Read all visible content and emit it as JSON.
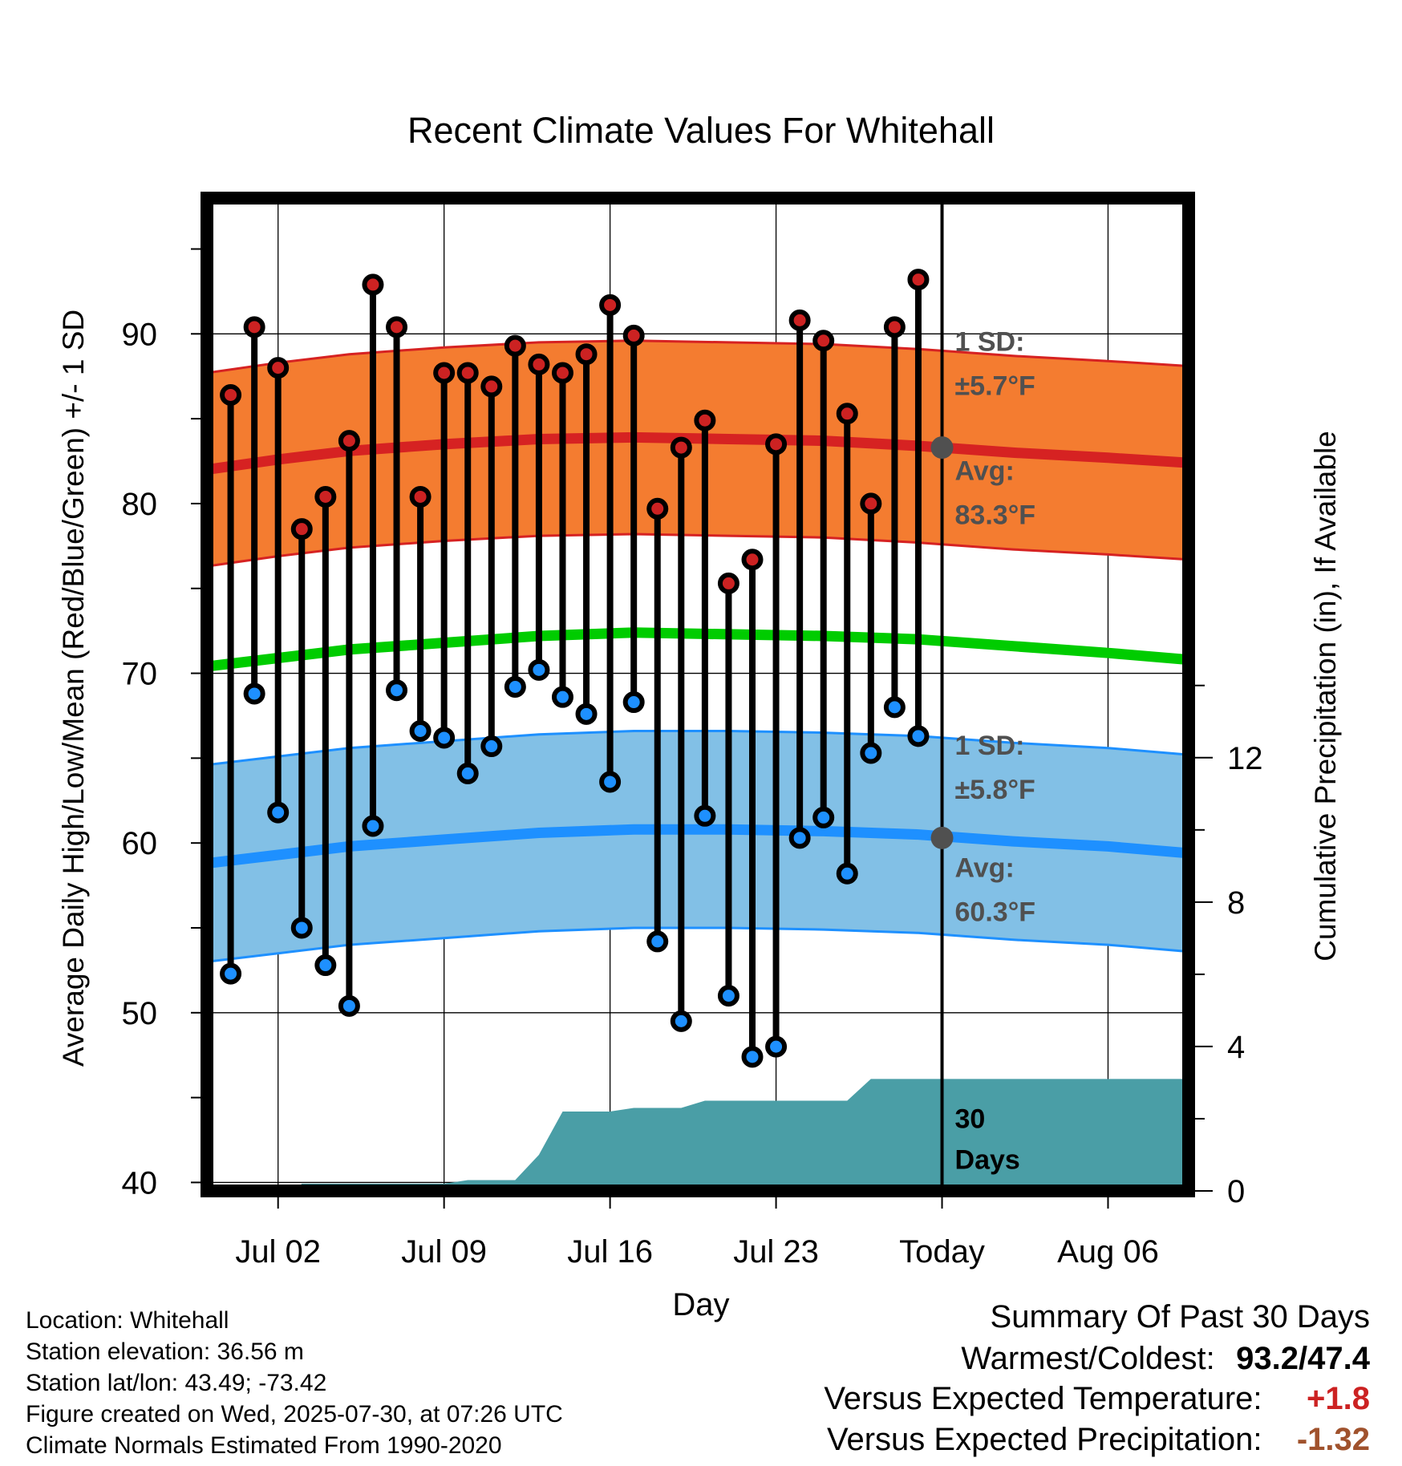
{
  "chart_data": {
    "type": "line",
    "title": "Recent Climate Values For Whitehall",
    "xlabel": "Day",
    "ylabel": "Average Daily High/Low/Mean (Red/Blue/Green) +/- 1 SD",
    "ylabel_right": "Cumulative Precipitation (in), If Available",
    "ylim": [
      39.5,
      98
    ],
    "ylim_right": [
      0,
      27.5
    ],
    "x_start": "Jun 29",
    "x_end": "Aug 09",
    "x_ticks": [
      {
        "day": 3,
        "label": "Jul 02"
      },
      {
        "day": 10,
        "label": "Jul 09"
      },
      {
        "day": 17,
        "label": "Jul 16"
      },
      {
        "day": 24,
        "label": "Jul 23"
      },
      {
        "day": 31,
        "label": "Today"
      },
      {
        "day": 38,
        "label": "Aug 06"
      }
    ],
    "y_ticks": [
      40,
      50,
      60,
      70,
      80,
      90
    ],
    "y_ticks_right": [
      0,
      4,
      8,
      12
    ],
    "today_day": 31,
    "normals": {
      "days": [
        0,
        3,
        6,
        10,
        14,
        18,
        22,
        26,
        30,
        34,
        38,
        41.4
      ],
      "high_mean": [
        82.0,
        82.6,
        83.1,
        83.5,
        83.8,
        83.9,
        83.8,
        83.7,
        83.4,
        83.0,
        82.7,
        82.4
      ],
      "high_sd": 5.7,
      "low_mean": [
        58.8,
        59.3,
        59.8,
        60.2,
        60.6,
        60.8,
        60.8,
        60.7,
        60.5,
        60.1,
        59.8,
        59.4
      ],
      "low_sd": 5.8,
      "mean": [
        70.4,
        70.9,
        71.4,
        71.8,
        72.2,
        72.4,
        72.3,
        72.2,
        72.0,
        71.6,
        71.2,
        70.8
      ]
    },
    "series": [
      {
        "name": "Daily High",
        "x": [
          1,
          2,
          3,
          4,
          5,
          6,
          7,
          8,
          9,
          10,
          11,
          12,
          13,
          14,
          15,
          16,
          17,
          18,
          19,
          20,
          21,
          22,
          23,
          24,
          25,
          26,
          27,
          28,
          29,
          30
        ],
        "values": [
          86.4,
          90.4,
          88.0,
          78.5,
          80.4,
          83.7,
          92.9,
          90.4,
          80.4,
          87.7,
          87.7,
          86.9,
          89.3,
          88.2,
          87.7,
          88.8,
          91.7,
          89.9,
          79.7,
          83.3,
          84.9,
          75.3,
          76.7,
          83.5,
          90.8,
          89.6,
          85.3,
          80.0,
          90.4,
          93.2
        ]
      },
      {
        "name": "Daily Low",
        "x": [
          1,
          2,
          3,
          4,
          5,
          6,
          7,
          8,
          9,
          10,
          11,
          12,
          13,
          14,
          15,
          16,
          17,
          18,
          19,
          20,
          21,
          22,
          23,
          24,
          25,
          26,
          27,
          28,
          29,
          30
        ],
        "values": [
          52.3,
          68.8,
          61.8,
          55.0,
          52.8,
          50.4,
          61.0,
          69.0,
          66.6,
          66.2,
          64.1,
          65.7,
          69.2,
          70.2,
          68.6,
          67.6,
          63.6,
          68.3,
          54.2,
          49.5,
          61.6,
          51.0,
          47.4,
          48.0,
          60.3,
          61.5,
          58.2,
          65.3,
          68.0,
          66.3
        ]
      }
    ],
    "precip_cumulative": {
      "x": [
        3.7,
        4,
        10,
        11,
        13,
        14,
        15,
        17,
        18,
        20,
        21,
        27,
        28,
        41.4
      ],
      "values": [
        0.0,
        0.2,
        0.2,
        0.3,
        0.3,
        1.0,
        2.2,
        2.2,
        2.3,
        2.3,
        2.5,
        2.5,
        3.1,
        3.1
      ]
    },
    "annotations": {
      "high_sd_label": "1 SD:",
      "high_sd_value": "±5.7°F",
      "high_avg_label": "Avg:",
      "high_avg_value": "83.3°F",
      "low_sd_label": "1 SD:",
      "low_sd_value": "±5.8°F",
      "low_avg_label": "Avg:",
      "low_avg_value": "60.3°F",
      "today_high_avg": 83.3,
      "today_low_avg": 60.3,
      "window_label_1": "30",
      "window_label_2": "Days"
    },
    "colors": {
      "high_band": "#f47c30",
      "high_line": "#d62222",
      "low_band": "#82c0e6",
      "low_line": "#1e90ff",
      "mean_line": "#00cc00",
      "precip": "#4a9ea6",
      "annotation": "#505050",
      "high_dot": "#cc2222",
      "low_dot": "#1e90ff"
    }
  },
  "footer": {
    "location": "Location: Whitehall",
    "elevation": "Station elevation: 36.56 m",
    "latlon": "Station lat/lon: 43.49; -73.42",
    "created": "Figure created on Wed, 2025-07-30, at 07:26 UTC",
    "normals": "Climate Normals Estimated From 1990-2020"
  },
  "summary": {
    "title": "Summary Of Past 30 Days",
    "warmest_coldest_label": "Warmest/Coldest:",
    "warmest_coldest_value": "93.2/47.4",
    "temp_label": "Versus Expected Temperature:",
    "temp_value": "+1.8",
    "temp_color": "#cc2222",
    "precip_label": "Versus Expected Precipitation:",
    "precip_value": "-1.32",
    "precip_color": "#a0522d"
  }
}
